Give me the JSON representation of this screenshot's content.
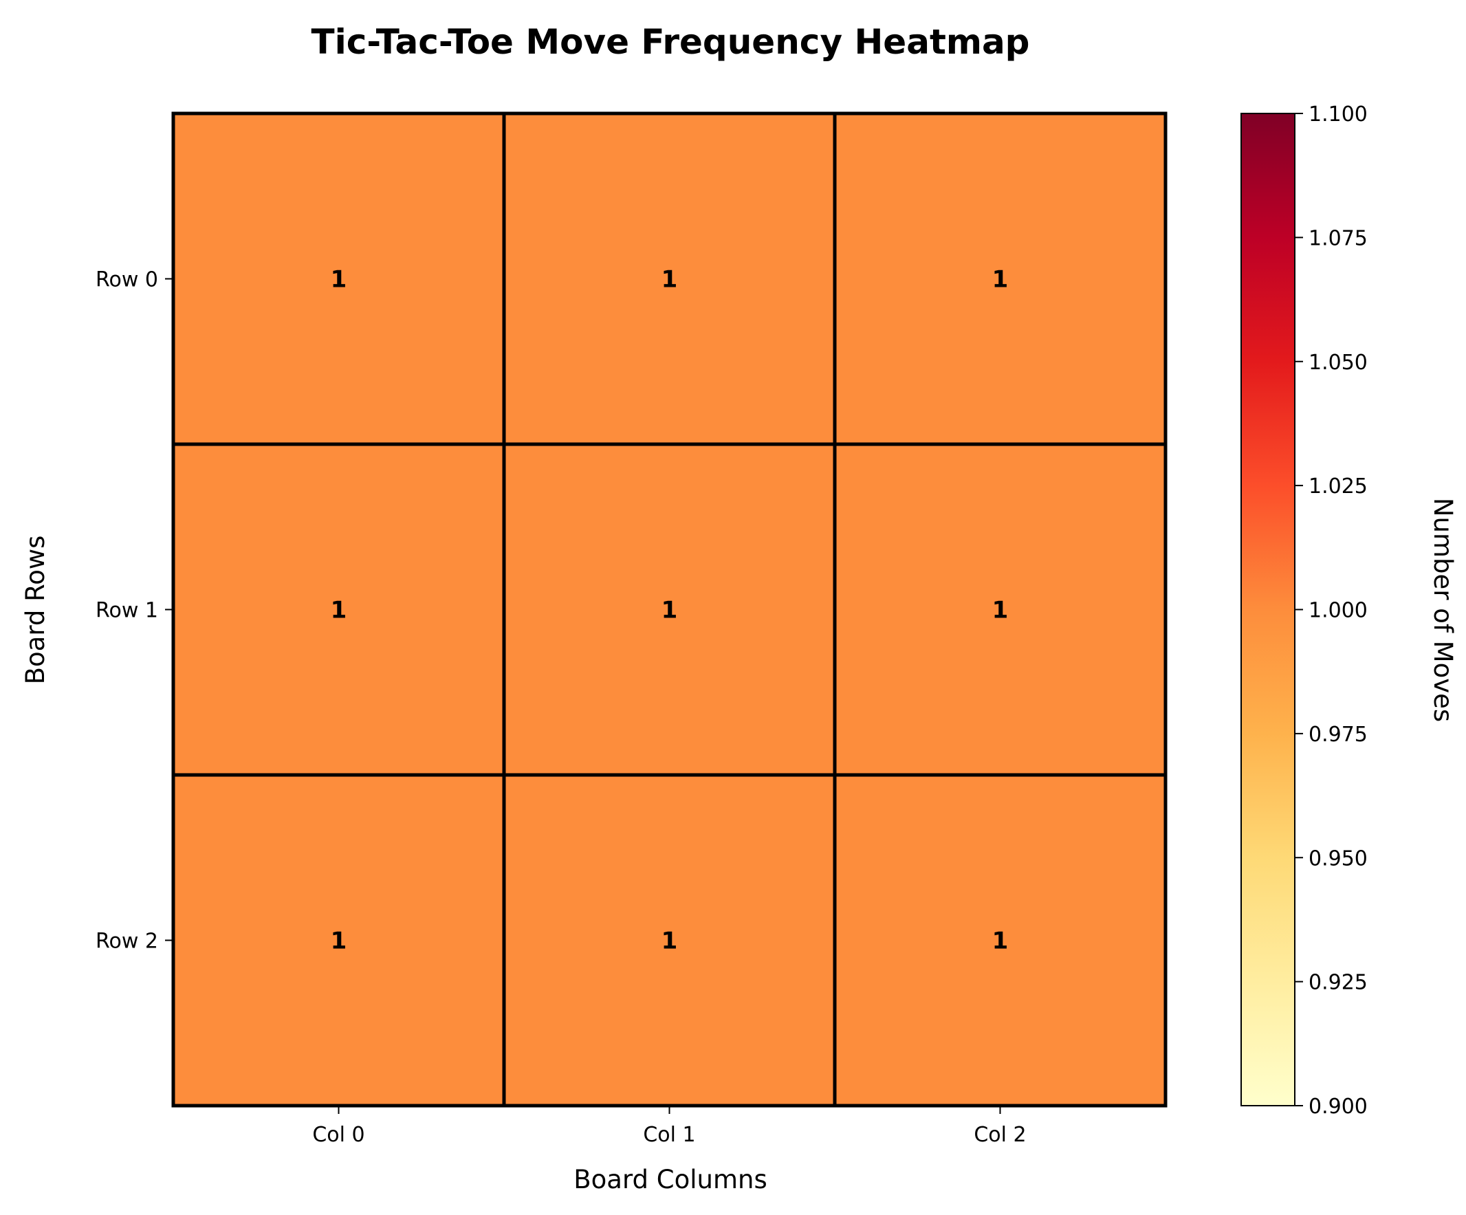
{
  "chart_data": {
    "type": "heatmap",
    "title": "Tic-Tac-Toe Move Frequency Heatmap",
    "xlabel": "Board Columns",
    "ylabel": "Board Rows",
    "x_categories": [
      "Col 0",
      "Col 1",
      "Col 2"
    ],
    "y_categories": [
      "Row 0",
      "Row 1",
      "Row 2"
    ],
    "values": [
      [
        1,
        1,
        1
      ],
      [
        1,
        1,
        1
      ],
      [
        1,
        1,
        1
      ]
    ],
    "cell_labels": [
      [
        "1",
        "1",
        "1"
      ],
      [
        "1",
        "1",
        "1"
      ],
      [
        "1",
        "1",
        "1"
      ]
    ],
    "colorbar": {
      "label": "Number of Moves",
      "range": [
        0.9,
        1.1
      ],
      "ticks": [
        "0.900",
        "0.925",
        "0.950",
        "0.975",
        "1.000",
        "1.025",
        "1.050",
        "1.075",
        "1.100"
      ],
      "colormap": "YlOrRd",
      "colors": [
        "#ffffcc",
        "#ffeda0",
        "#fed976",
        "#feb24c",
        "#fd8d3c",
        "#fc4e2a",
        "#e31a1c",
        "#bd0026",
        "#800026"
      ]
    },
    "grid": false,
    "cell_border_color": "#000000"
  }
}
